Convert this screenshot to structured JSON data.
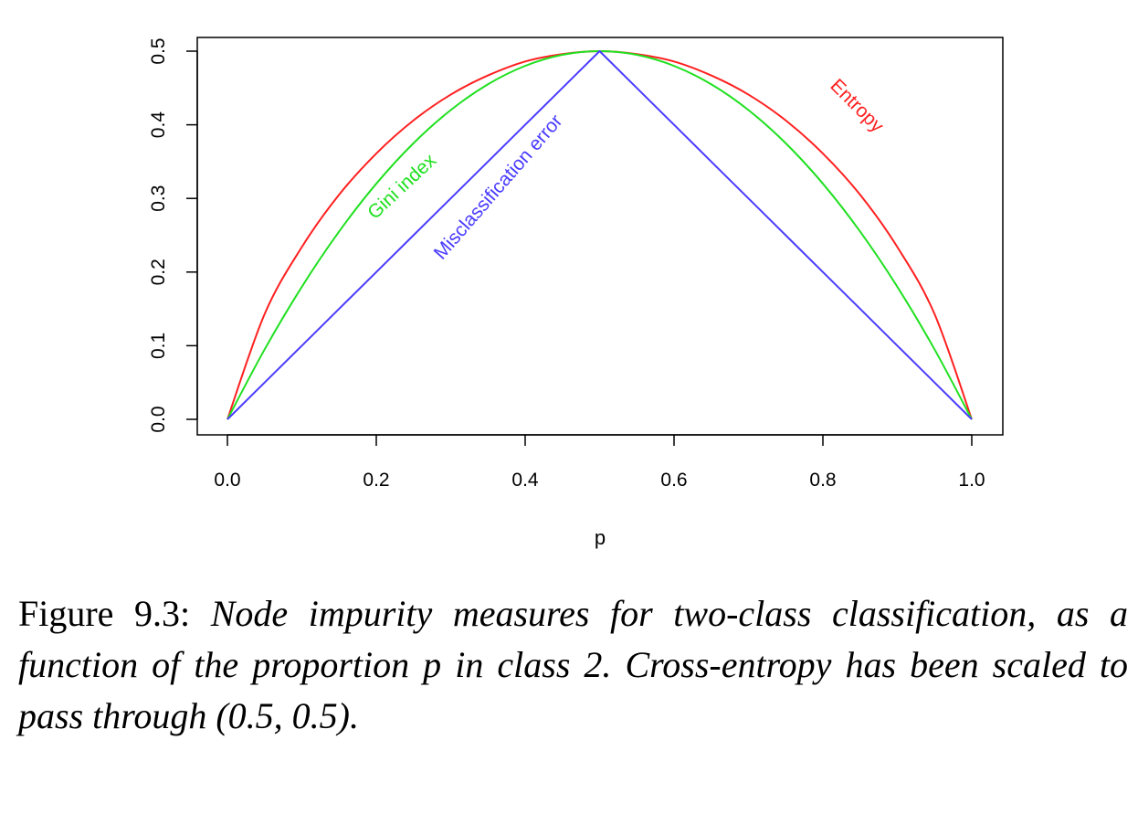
{
  "chart_data": {
    "type": "line",
    "xlabel": "p",
    "ylabel": "",
    "xlim": [
      0.0,
      1.0
    ],
    "ylim": [
      0.0,
      0.5
    ],
    "x_ticks": [
      "0.0",
      "0.2",
      "0.4",
      "0.6",
      "0.8",
      "1.0"
    ],
    "y_ticks": [
      "0.0",
      "0.1",
      "0.2",
      "0.3",
      "0.4",
      "0.5"
    ],
    "grid": false,
    "x": [
      0.0,
      0.05,
      0.1,
      0.15,
      0.2,
      0.25,
      0.3,
      0.35,
      0.4,
      0.45,
      0.5,
      0.55,
      0.6,
      0.65,
      0.7,
      0.75,
      0.8,
      0.85,
      0.9,
      0.95,
      1.0
    ],
    "series": [
      {
        "name": "Entropy",
        "color": "#ff2020",
        "values": [
          0.0,
          0.143,
          0.234,
          0.305,
          0.361,
          0.406,
          0.441,
          0.467,
          0.486,
          0.496,
          0.5,
          0.496,
          0.486,
          0.467,
          0.441,
          0.406,
          0.361,
          0.305,
          0.234,
          0.143,
          0.0
        ]
      },
      {
        "name": "Gini index",
        "color": "#20e020",
        "values": [
          0.0,
          0.095,
          0.18,
          0.255,
          0.32,
          0.375,
          0.42,
          0.455,
          0.48,
          0.495,
          0.5,
          0.495,
          0.48,
          0.455,
          0.42,
          0.375,
          0.32,
          0.255,
          0.18,
          0.095,
          0.0
        ]
      },
      {
        "name": "Misclassification error",
        "color": "#4a3cff",
        "values": [
          0.0,
          0.05,
          0.1,
          0.15,
          0.2,
          0.25,
          0.3,
          0.35,
          0.4,
          0.45,
          0.5,
          0.45,
          0.4,
          0.35,
          0.3,
          0.25,
          0.2,
          0.15,
          0.1,
          0.05,
          0.0
        ]
      }
    ],
    "annotations": [
      {
        "text": "Entropy",
        "series": "Entropy",
        "x": 0.84,
        "y": 0.42,
        "angle": 45
      },
      {
        "text": "Gini index",
        "series": "Gini index",
        "x": 0.24,
        "y": 0.31,
        "angle": -43
      },
      {
        "text": "Misclassification error",
        "series": "Misclassification error",
        "x": 0.37,
        "y": 0.31,
        "angle": -49
      }
    ]
  },
  "caption": {
    "label": "Figure 9.3:",
    "text": "Node impurity measures for two-class classification, as a function of the proportion p in class 2. Cross-entropy has been scaled to pass through (0.5, 0.5)."
  }
}
